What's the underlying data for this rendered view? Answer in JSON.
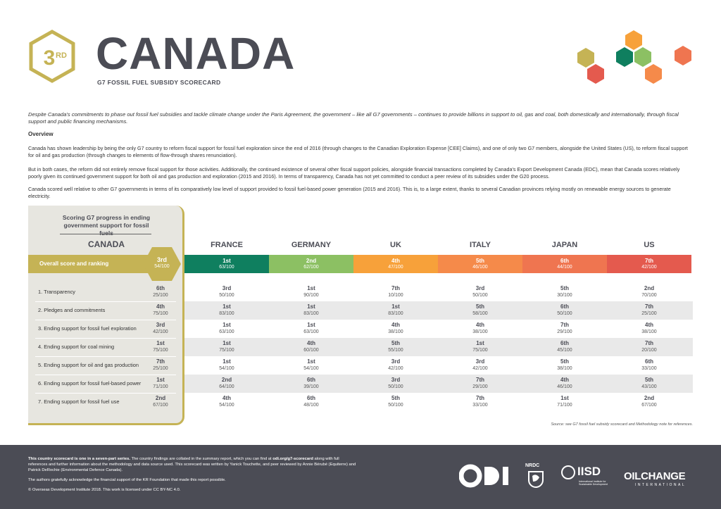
{
  "header": {
    "rank_number": "3",
    "rank_suffix": "RD",
    "country": "CANADA",
    "subtitle": "G7 FOSSIL FUEL SUBSIDY SCORECARD"
  },
  "intro": "Despite Canada's commitments to phase out fossil fuel subsidies and tackle climate change under the Paris Agreement, the government – like all G7 governments – continues to provide billions in support to oil, gas and coal, both domestically and internationally, through fiscal support and public financing mechanisms.",
  "overview": {
    "heading": "Overview",
    "paragraphs": [
      "Canada has shown leadership by being the only G7 country to reform fiscal support for fossil fuel exploration since the end of 2016 (through changes to the Canadian Exploration Expense [CEE] Claims), and one of only two G7 members, alongside the United States (US), to reform fiscal support for oil and gas production (through changes to elements of flow-through shares renunciation).",
      "But in both cases, the reform did not entirely remove fiscal support for those activities. Additionally, the continued existence of several other fiscal support policies, alongside financial transactions completed by Canada's Export Development Canada (EDC), mean that Canada scores relatively poorly given its continued government support for both oil and gas production and exploration (2015 and 2016). In terms of transparency, Canada has not yet committed to conduct a peer review of its subsidies under the G20 process.",
      "Canada scored well relative to other G7 governments in terms of its comparatively low level of support provided to fossil fuel-based power generation (2015 and 2016). This is, to a large extent, thanks to several Canadian provinces relying mostly on renewable energy sources to generate electricity."
    ]
  },
  "scorecard": {
    "panel_heading": "Scoring G7 progress in ending government support for fossil fuels",
    "focus_country": "CANADA",
    "overall_label": "Overall score and ranking",
    "overall": {
      "rank": "3rd",
      "score": "54/100"
    },
    "countries": [
      {
        "name": "FRANCE",
        "color": "#0f7f5f",
        "overall_rank": "1st",
        "overall_score": "63/100"
      },
      {
        "name": "GERMANY",
        "color": "#8cc063",
        "overall_rank": "2nd",
        "overall_score": "62/100"
      },
      {
        "name": "UK",
        "color": "#f7a13a",
        "overall_rank": "4th",
        "overall_score": "47/100"
      },
      {
        "name": "ITALY",
        "color": "#f58a4a",
        "overall_rank": "5th",
        "overall_score": "46/100"
      },
      {
        "name": "JAPAN",
        "color": "#ef7550",
        "overall_rank": "6th",
        "overall_score": "44/100"
      },
      {
        "name": "US",
        "color": "#e45a4e",
        "overall_rank": "7th",
        "overall_score": "42/100"
      }
    ],
    "rows": [
      {
        "label": "1. Transparency",
        "canada": {
          "rank": "6th",
          "score": "25/100"
        },
        "others": [
          [
            "3rd",
            "50/100"
          ],
          [
            "1st",
            "90/100"
          ],
          [
            "7th",
            "10/100"
          ],
          [
            "3rd",
            "50/100"
          ],
          [
            "5th",
            "30/100"
          ],
          [
            "2nd",
            "70/100"
          ]
        ]
      },
      {
        "label": "2. Pledges and commitments",
        "canada": {
          "rank": "4th",
          "score": "75/100"
        },
        "others": [
          [
            "1st",
            "83/100"
          ],
          [
            "1st",
            "83/100"
          ],
          [
            "1st",
            "83/100"
          ],
          [
            "5th",
            "58/100"
          ],
          [
            "6th",
            "50/100"
          ],
          [
            "7th",
            "25/100"
          ]
        ]
      },
      {
        "label": "3. Ending support for fossil fuel exploration",
        "canada": {
          "rank": "3rd",
          "score": "42/100"
        },
        "others": [
          [
            "1st",
            "63/100"
          ],
          [
            "1st",
            "63/100"
          ],
          [
            "4th",
            "38/100"
          ],
          [
            "4th",
            "38/100"
          ],
          [
            "7th",
            "29/100"
          ],
          [
            "4th",
            "38/100"
          ]
        ]
      },
      {
        "label": "4. Ending support for coal mining",
        "canada": {
          "rank": "1st",
          "score": "75/100"
        },
        "others": [
          [
            "1st",
            "75/100"
          ],
          [
            "4th",
            "60/100"
          ],
          [
            "5th",
            "55/100"
          ],
          [
            "1st",
            "75/100"
          ],
          [
            "6th",
            "45/100"
          ],
          [
            "7th",
            "20/100"
          ]
        ]
      },
      {
        "label": "5. Ending support for oil and gas production",
        "canada": {
          "rank": "7th",
          "score": "25/100"
        },
        "others": [
          [
            "1st",
            "54/100"
          ],
          [
            "1st",
            "54/100"
          ],
          [
            "3rd",
            "42/100"
          ],
          [
            "3rd",
            "42/100"
          ],
          [
            "5th",
            "38/100"
          ],
          [
            "6th",
            "33/100"
          ]
        ]
      },
      {
        "label": "6. Ending support for fossil fuel-based power",
        "canada": {
          "rank": "1st",
          "score": "71/100"
        },
        "others": [
          [
            "2nd",
            "64/100"
          ],
          [
            "6th",
            "39/100"
          ],
          [
            "3rd",
            "50/100"
          ],
          [
            "7th",
            "29/100"
          ],
          [
            "4th",
            "46/100"
          ],
          [
            "5th",
            "43/100"
          ]
        ]
      },
      {
        "label": "7. Ending support for fossil fuel use",
        "canada": {
          "rank": "2nd",
          "score": "67/100"
        },
        "others": [
          [
            "4th",
            "54/100"
          ],
          [
            "6th",
            "48/100"
          ],
          [
            "5th",
            "50/100"
          ],
          [
            "7th",
            "33/100"
          ],
          [
            "1st",
            "71/100"
          ],
          [
            "2nd",
            "67/100"
          ]
        ]
      }
    ],
    "source_note": "Source: see G7 fossil fuel subsidy scorecard and Methodology note for references."
  },
  "footer": {
    "series_bold": "This country scorecard is one in a seven-part series.",
    "series_text_a": " The country findings are collated in the summary report, which you can find at ",
    "series_link": "odi.org/g7-scorecard",
    "series_text_b": " along with full references and further information about the methodology and data source used. This scorecard was written by Yanick Touchette, and peer reviewed by Annie Bérubé (Equiterre) and Patrick DeRochie (Environmental Defence Canada).",
    "ack": "The authors gratefully acknowledge the financial support of the KR Foundation that made this report possible.",
    "copyright": "© Overseas Development Institute 2018. This work is licensed under CC BY-NC 4.0.",
    "logos": {
      "odi": "odi",
      "nrdc": "NRDC",
      "iisd": "IISD",
      "iisd_sub": "International Institute for Sustainable Development",
      "oilchange": "OILCHANGE",
      "oilchange_sub": "INTERNATIONAL"
    }
  },
  "colors": {
    "gold": "#c5b355",
    "dark": "#4b4c55",
    "panel": "#e7e6e0"
  }
}
